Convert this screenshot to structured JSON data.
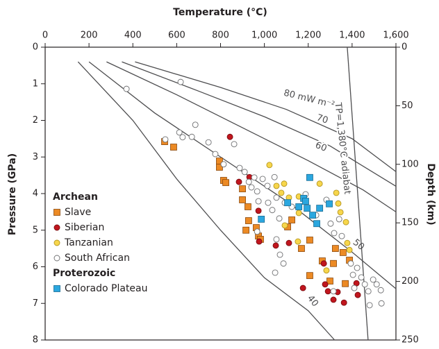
{
  "chart_data": {
    "type": "scatter",
    "title": "Temperature (°C)",
    "y_label": "Pressure (GPa)",
    "y2_label": "Depth (km)",
    "xlim": [
      0,
      1600
    ],
    "xticks": [
      0,
      200,
      400,
      600,
      800,
      {
        "value": 1000,
        "label": "1,000"
      },
      {
        "value": 1200,
        "label": "1,200"
      },
      {
        "value": 1400,
        "label": "1,400"
      },
      {
        "value": 1600,
        "label": "1,600"
      }
    ],
    "ylim": [
      0,
      8
    ],
    "yticks": [
      0,
      1,
      2,
      3,
      4,
      5,
      6,
      7,
      8
    ],
    "y_inverted": true,
    "y2lim": [
      0,
      250
    ],
    "y2ticks": [
      0,
      50,
      100,
      150,
      200,
      250
    ],
    "legend": "lower left",
    "series": [
      {
        "name": "Slave",
        "group": "Archean",
        "marker": "square",
        "color": "#ec8a24",
        "x": [
          545,
          586,
          795,
          795,
          814,
          824,
          900,
          900,
          925,
          928,
          916,
          963,
          973,
          982,
          1106,
          1125,
          1169,
          1207,
          1264,
          1315,
          1324,
          1359,
          1299,
          1369,
          1388,
          1207
        ],
        "values": [
          2.58,
          2.73,
          3.11,
          3.28,
          3.64,
          3.7,
          3.87,
          4.17,
          4.36,
          4.74,
          5.0,
          4.93,
          5.16,
          5.25,
          4.91,
          4.72,
          5.5,
          5.27,
          5.84,
          5.91,
          5.5,
          5.61,
          6.39,
          6.46,
          5.82,
          6.24
        ]
      },
      {
        "name": "Siberian",
        "group": "Archean",
        "marker": "circle",
        "color": "#c1161e",
        "x": [
          843,
          884,
          932,
          973,
          976,
          1052,
          1112,
          1176,
          1277,
          1290,
          1315,
          1334,
          1363,
          1420,
          1426,
          1271
        ],
        "values": [
          2.45,
          3.68,
          3.55,
          4.47,
          5.31,
          5.42,
          5.35,
          6.58,
          6.48,
          6.67,
          6.9,
          6.69,
          6.98,
          6.45,
          6.77,
          5.91
        ]
      },
      {
        "name": "Tanzanian",
        "group": "Archean",
        "marker": "circle",
        "color": "#f7d64c",
        "x": [
          1023,
          1055,
          1090,
          1077,
          1112,
          1157,
          1157,
          1093,
          1153,
          1252,
          1328,
          1337,
          1347,
          1372,
          1388,
          1378,
          1283
        ],
        "values": [
          3.22,
          3.79,
          3.73,
          3.98,
          4.11,
          4.08,
          4.53,
          4.87,
          5.31,
          3.73,
          3.98,
          4.27,
          4.51,
          4.78,
          5.54,
          5.35,
          6.1
        ]
      },
      {
        "name": "South African",
        "group": "Archean",
        "marker": "circle",
        "color": "#ffffff",
        "x": [
          371,
          618,
          548,
          612,
          627,
          685,
          669,
          745,
          776,
          814,
          862,
          887,
          910,
          929,
          941,
          954,
          967,
          973,
          992,
          1014,
          1017,
          1036,
          1046,
          1055,
          1068,
          1093,
          1125,
          1188,
          1236,
          1283,
          1302,
          1318,
          1341,
          1353,
          1394,
          1404,
          1410,
          1423,
          1442,
          1458,
          1474,
          1496,
          1512,
          1531,
          1480,
          1315,
          1049,
          1071,
          1087,
          1055,
          967,
          1534
        ],
        "values": [
          1.14,
          0.95,
          2.52,
          2.33,
          2.46,
          2.12,
          2.45,
          2.6,
          2.92,
          3.2,
          2.65,
          3.3,
          3.41,
          3.68,
          3.83,
          3.56,
          3.94,
          4.21,
          3.6,
          3.79,
          4.25,
          4.45,
          3.55,
          4.11,
          4.68,
          4.25,
          4.36,
          4.02,
          4.59,
          4.17,
          4.82,
          5.08,
          4.7,
          5.16,
          5.91,
          6.22,
          6.58,
          6.03,
          6.29,
          6.48,
          6.67,
          6.35,
          6.48,
          6.64,
          7.05,
          6.67,
          6.16,
          5.67,
          5.91,
          5.25,
          5.04,
          7.0
        ]
      },
      {
        "name": "Colorado Plateau",
        "group": "Proterozoic",
        "marker": "square",
        "color": "#2ba7df",
        "x": [
          1207,
          1106,
          1179,
          1157,
          1188,
          1195,
          1220,
          1252,
          1296,
          1239,
          986
        ],
        "values": [
          3.56,
          4.25,
          4.13,
          4.36,
          4.21,
          4.4,
          4.59,
          4.4,
          4.28,
          4.82,
          4.7
        ]
      }
    ],
    "curves": [
      {
        "label": "80 mW m⁻²",
        "x": [
          410,
          800,
          1100,
          1400,
          1600
        ],
        "values": [
          0.4,
          1.1,
          1.7,
          2.5,
          3.4
        ]
      },
      {
        "label": "70",
        "x": [
          350,
          700,
          1000,
          1300,
          1600
        ],
        "values": [
          0.4,
          1.2,
          1.9,
          2.7,
          3.8
        ]
      },
      {
        "label": "60",
        "x": [
          280,
          600,
          900,
          1200,
          1450,
          1600
        ],
        "values": [
          0.4,
          1.3,
          2.2,
          3.1,
          3.9,
          4.5
        ]
      },
      {
        "label": "50",
        "x": [
          200,
          500,
          800,
          1100,
          1400,
          1600
        ],
        "values": [
          0.4,
          1.8,
          3.0,
          4.2,
          5.6,
          6.6
        ]
      },
      {
        "label": "40",
        "x": [
          150,
          400,
          600,
          800,
          1000,
          1200,
          1320
        ],
        "values": [
          0.4,
          2.0,
          3.6,
          5.0,
          6.3,
          7.2,
          8.0
        ]
      },
      {
        "label": "TP=1,380°C adiabat",
        "x": [
          1378,
          1473
        ],
        "values": [
          0,
          8
        ]
      }
    ]
  }
}
